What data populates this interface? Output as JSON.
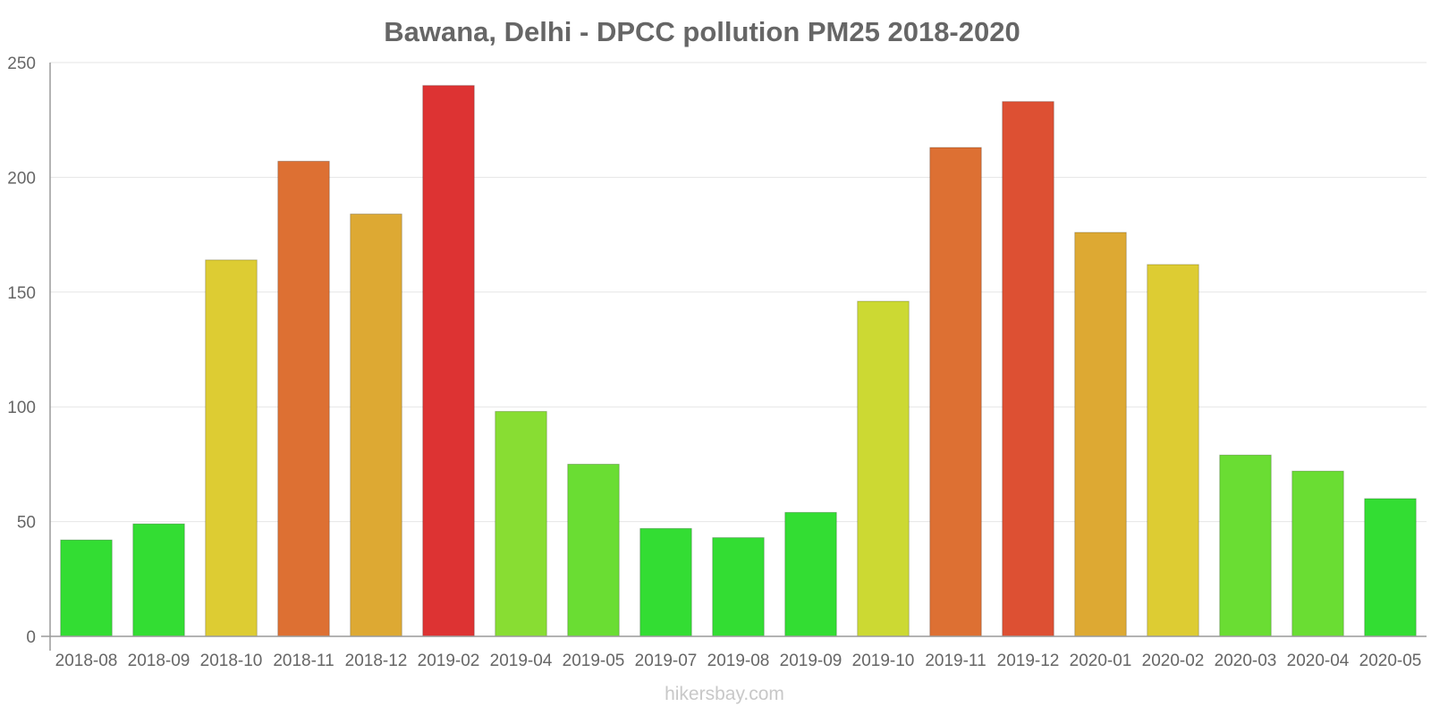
{
  "chart_data": {
    "type": "bar",
    "title": "Bawana, Delhi - DPCC pollution PM25 2018-2020",
    "xlabel": "",
    "ylabel": "",
    "ylim": [
      0,
      250
    ],
    "yticks": [
      0,
      50,
      100,
      150,
      200,
      250
    ],
    "grid": true,
    "legend": "none",
    "categories": [
      "2018-08",
      "2018-09",
      "2018-10",
      "2018-11",
      "2018-12",
      "2019-02",
      "2019-04",
      "2019-05",
      "2019-07",
      "2019-08",
      "2019-09",
      "2019-10",
      "2019-11",
      "2019-12",
      "2020-01",
      "2020-02",
      "2020-03",
      "2020-04",
      "2020-05"
    ],
    "values": [
      42,
      49,
      164,
      207,
      184,
      240,
      98,
      75,
      47,
      43,
      54,
      146,
      213,
      233,
      176,
      162,
      79,
      72,
      60
    ],
    "colors": [
      "#33dd33",
      "#33dd33",
      "#ddcc33",
      "#dd7033",
      "#dda933",
      "#dd3333",
      "#88dd33",
      "#6add33",
      "#33dd33",
      "#33dd33",
      "#33dd33",
      "#ccd933",
      "#dd7033",
      "#dd5033",
      "#dda933",
      "#ddcc33",
      "#6add33",
      "#6add33",
      "#33dd33"
    ]
  },
  "watermark": "hikersbay.com"
}
